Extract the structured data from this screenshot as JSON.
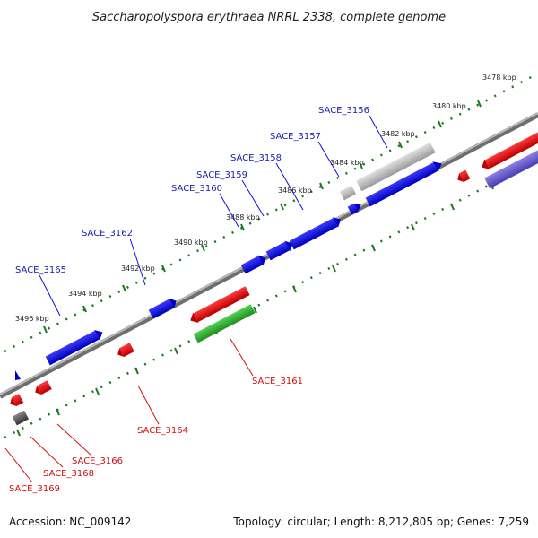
{
  "title": "Saccharopolyspora erythraea NRRL 2338, complete genome",
  "footer": {
    "accession": "Accession: NC_009142",
    "stats": "Topology: circular; Length: 8,212,805 bp; Genes: 7,259"
  },
  "ticks": [
    "3478 kbp",
    "3480 kbp",
    "3482 kbp",
    "3484 kbp",
    "3486 kbp",
    "3488 kbp",
    "3490 kbp",
    "3492 kbp",
    "3494 kbp",
    "3496 kbp"
  ],
  "genes_top": [
    "SACE_3156",
    "SACE_3157",
    "SACE_3158",
    "SACE_3159",
    "SACE_3160",
    "SACE_3162",
    "SACE_3165"
  ],
  "genes_bottom": [
    "SACE_3161",
    "SACE_3164",
    "SACE_3166",
    "SACE_3168",
    "SACE_3169"
  ],
  "colors": {
    "forward": "#1010d8",
    "reverse": "#e01010",
    "green": "#30b030",
    "gray": "#a8a8a8",
    "dark_gray": "#555555",
    "purple": "#6a5acd",
    "tick_dots": "#1a7a1a",
    "backbone": "#8a8a8a"
  }
}
